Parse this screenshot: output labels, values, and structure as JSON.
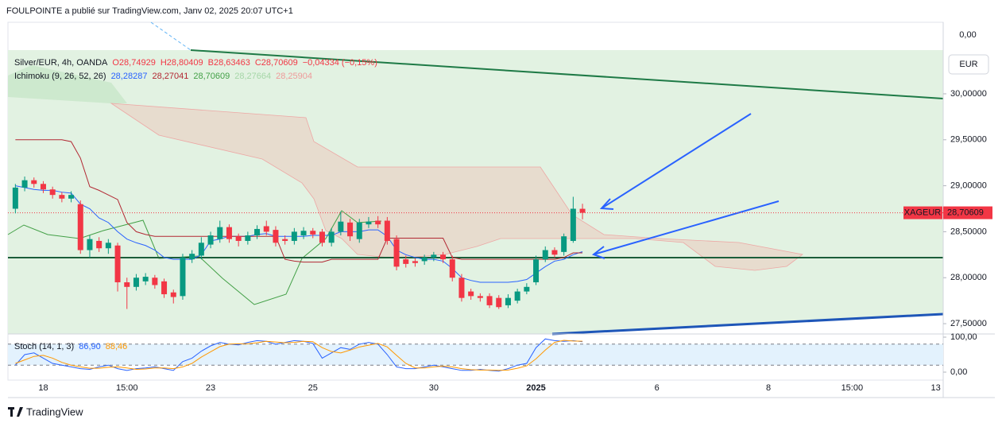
{
  "header": {
    "title": "FOULPOINTE a publié sur TradingView.com, Janv 02, 2025 20:07 UTC+1",
    "brand": "TradingView"
  },
  "legend": {
    "symbol": "Silver/EUR, 4h, OANDA",
    "open": "O28,74929",
    "high": "H28,80409",
    "low": "B28,63463",
    "close": "C28,70609",
    "change": "−0,04334 (−0,15%)",
    "indicator": "Ichimoku (9, 26, 52, 26)",
    "indicator_values": [
      {
        "text": "28,28287",
        "color": "#2962ff"
      },
      {
        "text": "28,27041",
        "color": "#b22833"
      },
      {
        "text": "28,70609",
        "color": "#43a047"
      },
      {
        "text": "28,27664",
        "color": "#a5d6a7"
      },
      {
        "text": "28,25904",
        "color": "#ef9a9a"
      }
    ]
  },
  "price_scale": {
    "top_label": "0,00",
    "currency": "EUR"
  },
  "chart_data": [
    {
      "type": "candlestick",
      "symbol": "XAGEUR",
      "last_price_label": "28,70609",
      "up_color": "#089981",
      "down_color": "#f23645",
      "open": [
        28.75,
        28.98,
        29.06,
        29.02,
        28.96,
        28.9,
        28.86,
        28.8,
        28.3,
        28.4,
        28.32,
        28.35,
        27.95,
        27.9,
        27.96,
        28.0,
        27.96,
        27.84,
        27.8,
        28.2,
        28.24,
        28.36,
        28.42,
        28.55,
        28.45,
        28.4,
        28.46,
        28.56,
        28.52,
        28.42,
        28.4,
        28.46,
        28.51,
        28.5,
        28.38,
        28.5,
        28.6,
        28.42,
        28.58,
        28.62,
        28.62,
        28.42,
        28.2,
        28.18,
        28.18,
        28.22,
        28.25,
        28.2,
        28.0,
        27.85,
        27.8,
        27.8,
        27.78,
        27.7,
        27.75,
        27.85,
        27.95,
        28.2,
        28.3,
        28.28,
        28.4,
        28.74929
      ],
      "high": [
        29.02,
        29.1,
        29.09,
        29.05,
        28.99,
        28.93,
        28.94,
        28.84,
        28.46,
        28.44,
        28.42,
        28.38,
        28.0,
        28.04,
        28.05,
        28.03,
        27.99,
        27.87,
        28.26,
        28.3,
        28.44,
        28.5,
        28.62,
        28.58,
        28.48,
        28.5,
        28.57,
        28.62,
        28.56,
        28.46,
        28.54,
        28.55,
        28.54,
        28.53,
        28.54,
        28.72,
        28.64,
        28.64,
        28.66,
        28.67,
        28.66,
        28.46,
        28.24,
        28.21,
        28.25,
        28.28,
        28.28,
        28.24,
        28.04,
        27.88,
        27.83,
        27.83,
        27.81,
        27.82,
        27.88,
        27.94,
        28.24,
        28.34,
        28.33,
        28.48,
        28.88,
        28.80409
      ],
      "low": [
        28.7,
        28.94,
        28.98,
        28.92,
        28.86,
        28.82,
        28.82,
        28.26,
        28.22,
        28.28,
        28.26,
        27.85,
        27.66,
        27.86,
        27.92,
        27.88,
        27.78,
        27.72,
        27.76,
        28.16,
        28.2,
        28.32,
        28.38,
        28.38,
        28.34,
        28.36,
        28.42,
        28.46,
        28.34,
        28.36,
        28.36,
        28.42,
        28.43,
        28.34,
        28.34,
        28.46,
        28.4,
        28.38,
        28.54,
        28.54,
        28.36,
        28.08,
        28.11,
        28.12,
        28.14,
        28.18,
        28.16,
        27.96,
        27.74,
        27.76,
        27.74,
        27.67,
        27.66,
        27.67,
        27.72,
        27.82,
        27.92,
        28.17,
        28.22,
        28.24,
        28.38,
        28.63463
      ],
      "close": [
        28.98,
        29.06,
        29.02,
        28.96,
        28.9,
        28.86,
        28.9,
        28.3,
        28.42,
        28.32,
        28.38,
        27.95,
        27.9,
        28.0,
        28.01,
        27.92,
        27.82,
        27.79,
        28.22,
        28.26,
        28.38,
        28.46,
        28.55,
        28.42,
        28.4,
        28.46,
        28.53,
        28.5,
        28.38,
        28.4,
        28.5,
        28.51,
        28.47,
        28.38,
        28.5,
        28.61,
        28.45,
        28.6,
        28.61,
        28.58,
        28.4,
        28.12,
        28.15,
        28.16,
        28.22,
        28.25,
        28.2,
        28.0,
        27.78,
        27.8,
        27.78,
        27.7,
        27.68,
        27.78,
        27.85,
        27.9,
        28.2,
        28.3,
        28.25,
        28.45,
        28.75,
        28.70609
      ],
      "series": [
        {
          "color": "#2962ff",
          "values": [
            29.0,
            28.98,
            28.96,
            28.95,
            28.95,
            28.93,
            28.92,
            28.8,
            28.75,
            28.65,
            28.6,
            28.5,
            28.42,
            28.38,
            28.35,
            28.3,
            28.22,
            28.2,
            28.2,
            28.2,
            28.25,
            28.4,
            28.42,
            28.45,
            28.45,
            28.45,
            28.47,
            28.48,
            28.45,
            28.45,
            28.45,
            28.45,
            28.46,
            28.46,
            28.46,
            28.5,
            28.5,
            28.5,
            28.52,
            28.52,
            28.45,
            28.3,
            28.25,
            28.22,
            28.2,
            28.2,
            28.18,
            28.1,
            28.0,
            27.97,
            27.95,
            27.95,
            27.95,
            27.95,
            27.96,
            27.98,
            28.05,
            28.12,
            28.18,
            28.2,
            28.25,
            28.28287
          ]
        },
        {
          "color": "#b22833",
          "values": [
            29.5,
            29.5,
            29.5,
            29.5,
            29.5,
            29.5,
            29.48,
            29.3,
            28.99,
            28.95,
            28.9,
            28.85,
            28.6,
            28.5,
            28.47,
            28.45,
            28.45,
            28.45,
            28.45,
            28.45,
            28.45,
            28.45,
            28.45,
            28.45,
            28.45,
            28.45,
            28.45,
            28.45,
            28.45,
            28.2,
            28.18,
            28.17,
            28.17,
            28.17,
            28.2,
            28.2,
            28.2,
            28.2,
            28.2,
            28.2,
            28.43,
            28.43,
            28.43,
            28.43,
            28.43,
            28.43,
            28.43,
            28.22,
            28.2,
            28.2,
            28.2,
            28.2,
            28.2,
            28.2,
            28.2,
            28.2,
            28.2,
            28.2,
            28.2,
            28.22,
            28.27,
            28.27041
          ]
        }
      ],
      "xlim": [
        -0.8,
        99.8
      ],
      "xticks": [
        {
          "value": 3,
          "label": "18"
        },
        {
          "value": 12,
          "label": "15:00"
        },
        {
          "value": 21,
          "label": "23"
        },
        {
          "value": 32,
          "label": "25"
        },
        {
          "value": 45,
          "label": "30"
        },
        {
          "value": 56,
          "label": "2025"
        },
        {
          "value": 69,
          "label": "6"
        },
        {
          "value": 81,
          "label": "8"
        },
        {
          "value": 90,
          "label": "15:00"
        },
        {
          "value": 99,
          "label": "13"
        }
      ],
      "ylim": [
        27.388,
        30.778
      ],
      "yticks": [
        {
          "value": 27.5,
          "label": "27,50000"
        },
        {
          "value": 28,
          "label": "28,00000"
        },
        {
          "value": 28.5,
          "label": "28,50000"
        },
        {
          "value": 29,
          "label": "29,00000"
        },
        {
          "value": 29.5,
          "label": "29,50000"
        },
        {
          "value": 30,
          "label": "30,00000"
        }
      ]
    },
    {
      "type": "line",
      "title": "Stoch (14, 1, 3)",
      "bands": [
        20,
        80
      ],
      "band_color": "#e3f2fd",
      "series": [
        {
          "color": "#2962ff",
          "value_label": "86,90",
          "values": [
            20,
            50,
            55,
            40,
            25,
            20,
            15,
            10,
            8,
            15,
            20,
            10,
            5,
            10,
            12,
            15,
            10,
            5,
            30,
            40,
            60,
            75,
            85,
            80,
            78,
            85,
            90,
            88,
            80,
            85,
            90,
            88,
            82,
            40,
            55,
            70,
            65,
            80,
            85,
            80,
            50,
            15,
            10,
            10,
            15,
            20,
            15,
            10,
            5,
            5,
            8,
            5,
            3,
            10,
            20,
            25,
            70,
            95,
            90,
            88,
            90,
            86.9
          ]
        },
        {
          "color": "#ff9800",
          "value_label": "88,46",
          "values": [
            25,
            35,
            45,
            48,
            40,
            28,
            20,
            15,
            11,
            11,
            14,
            15,
            12,
            8,
            9,
            12,
            12,
            10,
            15,
            25,
            43,
            58,
            73,
            80,
            81,
            81,
            84,
            88,
            86,
            84,
            85,
            88,
            87,
            70,
            59,
            55,
            63,
            72,
            77,
            82,
            72,
            48,
            25,
            12,
            12,
            15,
            17,
            15,
            10,
            7,
            6,
            6,
            5,
            6,
            11,
            18,
            38,
            63,
            85,
            91,
            89,
            88.46
          ]
        }
      ],
      "ylim": [
        -22.7,
        109.1
      ],
      "yticks": [
        {
          "value": 0,
          "label": "0,00"
        },
        {
          "value": 100,
          "label": "100,00"
        }
      ]
    }
  ]
}
